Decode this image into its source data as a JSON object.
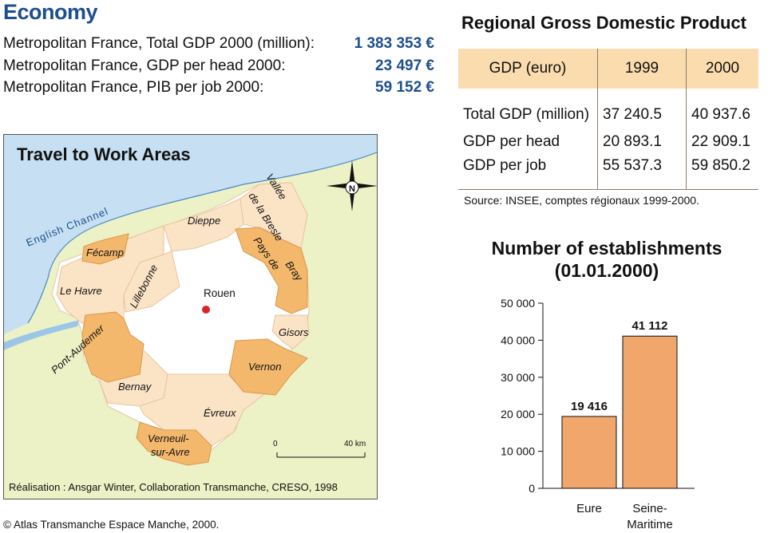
{
  "economy": {
    "title": "Economy",
    "stats": [
      {
        "label": "Metropolitan France, Total GDP 2000 (million):",
        "value": "1 383 353 €"
      },
      {
        "label": "Metropolitan France, GDP per head 2000:",
        "value": "23 497 €"
      },
      {
        "label": "Metropolitan France, PIB per job 2000:",
        "value": "59 152 €"
      }
    ]
  },
  "gdp_table": {
    "title": "Regional Gross Domestic Product",
    "headers": [
      "GDP (euro)",
      "1999",
      "2000"
    ],
    "rows": [
      [
        "Total GDP (million)",
        "37 240.5",
        "40 937.6"
      ],
      [
        "GDP per head",
        "20 893.1",
        "22 909.1"
      ],
      [
        "GDP per job",
        "55 537.3",
        "59 850.2"
      ]
    ],
    "source": "Source: INSEE, comptes régionaux 1999-2000.",
    "header_color": "#fbdcae"
  },
  "map": {
    "title": "Travel to Work Areas",
    "sea_label": "English Channel",
    "compass_letter": "N",
    "scale": {
      "start": "0",
      "end": "40 km"
    },
    "credit": "Réalisation : Ansgar Winter, Collaboration Transmanche, CRESO, 1998",
    "areas": {
      "fecamp": "Fécamp",
      "le_havre": "Le Havre",
      "lillebonne": "Lillebonne",
      "dieppe": "Dieppe",
      "vallee_1": "Vallée",
      "vallee_2": "de la Bresle",
      "pays_1": "Pays de",
      "pays_2": "Bray",
      "rouen": "Rouen",
      "gisors": "Gisors",
      "pont_audemer": "Pont-Audemer",
      "vernon": "Vernon",
      "bernay": "Bernay",
      "evreux": "Évreux",
      "verneuil_1": "Verneuil-",
      "verneuil_2": "sur-Avre"
    },
    "colors": {
      "sea": "#c6dff2",
      "land": "#ecf1c6",
      "light_area": "#fbe4c6",
      "dark_area": "#f4b86c",
      "region": "#ffffff",
      "coast": "#4a89c9",
      "city_dot": "#d7262b"
    }
  },
  "atlas_credit": "© Atlas Transmanche Espace Manche, 2000.",
  "chart_data": {
    "type": "bar",
    "title": "Number of establishments (01.01.2000)",
    "title_lines": [
      "Number of establishments",
      "(01.01.2000)"
    ],
    "categories": [
      "Eure",
      "Seine-Maritime"
    ],
    "category_lines": [
      [
        "Eure"
      ],
      [
        "Seine-",
        "Maritime"
      ]
    ],
    "values": [
      19416,
      41112
    ],
    "value_labels": [
      "19 416",
      "41 112"
    ],
    "ylim": [
      0,
      50000
    ],
    "yticks": [
      0,
      10000,
      20000,
      30000,
      40000,
      50000
    ],
    "ytick_labels": [
      "0",
      "10 000",
      "20 000",
      "30 000",
      "40 000",
      "50 000"
    ],
    "grid": false,
    "bar_color": "#f1a76c",
    "xlabel": "",
    "ylabel": ""
  }
}
